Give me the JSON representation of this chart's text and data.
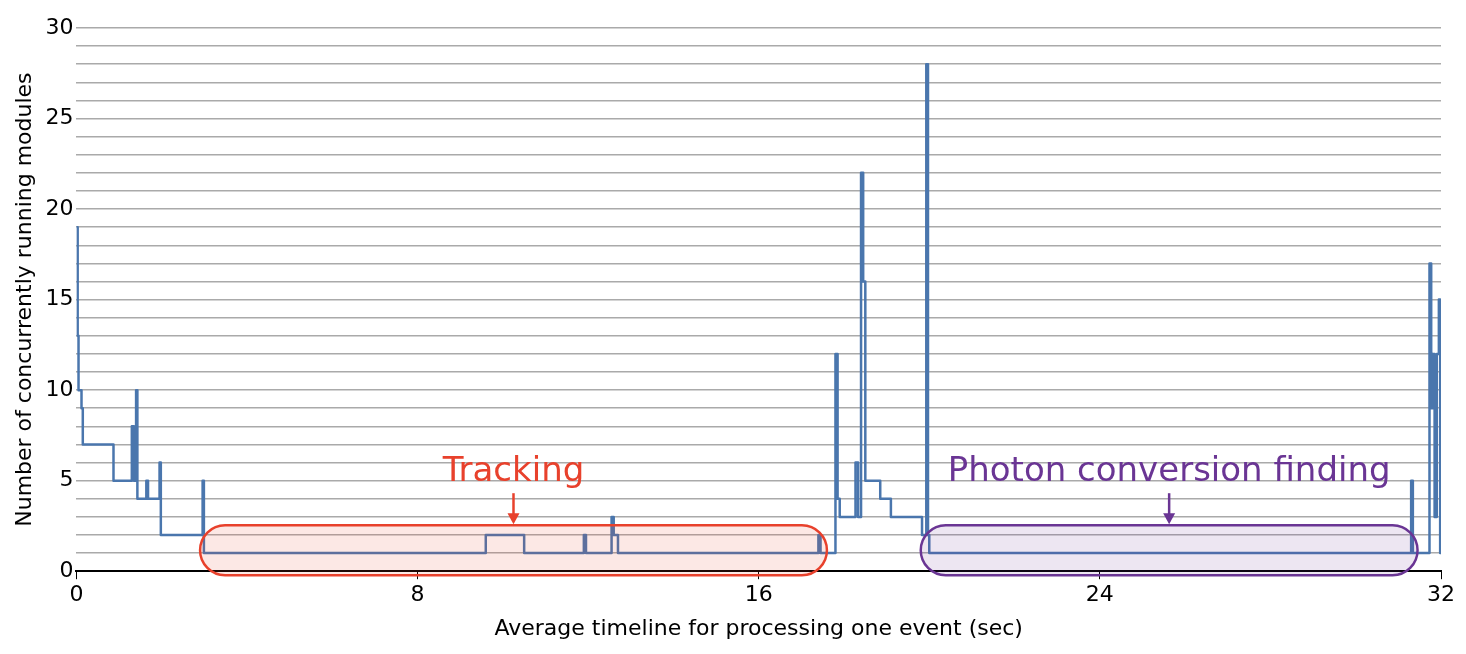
{
  "chart_data": {
    "type": "step",
    "xlabel": "Average timeline for processing one event (sec)",
    "ylabel": "Number of concurrently running modules",
    "series": [
      {
        "color": "#4a76ad",
        "x": [
          0,
          0.03,
          0.05,
          0.12,
          0.15,
          0.87,
          1.3,
          1.35,
          1.4,
          1.43,
          1.64,
          1.68,
          1.95,
          1.98,
          2.96,
          2.99,
          9.6,
          10.5,
          11.9,
          11.95,
          12.55,
          12.6,
          12.7,
          17.4,
          17.45,
          17.8,
          17.85,
          17.9,
          18.27,
          18.33,
          18.4,
          18.45,
          18.5,
          18.85,
          19.1,
          19.83,
          19.93,
          19.97,
          20,
          31.3,
          31.34,
          31.73,
          31.77,
          31.8,
          31.85,
          31.9,
          31.95,
          31.98,
          32
        ],
        "values": [
          19,
          13,
          10,
          9,
          7,
          5,
          8,
          5,
          10,
          4,
          5,
          4,
          6,
          2,
          5,
          1,
          2,
          1,
          2,
          1,
          3,
          2,
          1,
          2,
          1,
          12,
          4,
          3,
          6,
          3,
          22,
          16,
          5,
          4,
          3,
          2,
          28,
          2,
          1,
          5,
          1,
          17,
          9,
          12,
          3,
          12,
          15,
          1,
          1
        ]
      }
    ],
    "xlim": [
      0,
      32
    ],
    "xticks": [
      0,
      8,
      16,
      24,
      32
    ],
    "ylim": [
      0,
      30
    ],
    "yticks": [
      0,
      {
        "value": 1,
        "label": null
      },
      {
        "value": 2,
        "label": null
      },
      {
        "value": 3,
        "label": null
      },
      {
        "value": 4,
        "label": null
      },
      5,
      {
        "value": 6,
        "label": null
      },
      {
        "value": 7,
        "label": null
      },
      {
        "value": 8,
        "label": null
      },
      {
        "value": 9,
        "label": null
      },
      10,
      {
        "value": 11,
        "label": null
      },
      {
        "value": 12,
        "label": null
      },
      {
        "value": 13,
        "label": null
      },
      {
        "value": 14,
        "label": null
      },
      15,
      {
        "value": 16,
        "label": null
      },
      {
        "value": 17,
        "label": null
      },
      {
        "value": 18,
        "label": null
      },
      {
        "value": 19,
        "label": null
      },
      20,
      {
        "value": 21,
        "label": null
      },
      {
        "value": 22,
        "label": null
      },
      {
        "value": 23,
        "label": null
      },
      {
        "value": 24,
        "label": null
      },
      25,
      {
        "value": 26,
        "label": null
      },
      {
        "value": 27,
        "label": null
      },
      {
        "value": 28,
        "label": null
      },
      {
        "value": 29,
        "label": null
      },
      30
    ],
    "grid": "y",
    "legend": false,
    "marker": "none",
    "line_style": "solid",
    "bands": [
      {
        "axis": "x",
        "from": 2.9,
        "to": 17.6,
        "label": "Tracking",
        "color": "#e8412c"
      },
      {
        "axis": "x",
        "from": 19.8,
        "to": 31.45,
        "label": "Photon conversion finding",
        "color": "#6a3594"
      }
    ]
  }
}
